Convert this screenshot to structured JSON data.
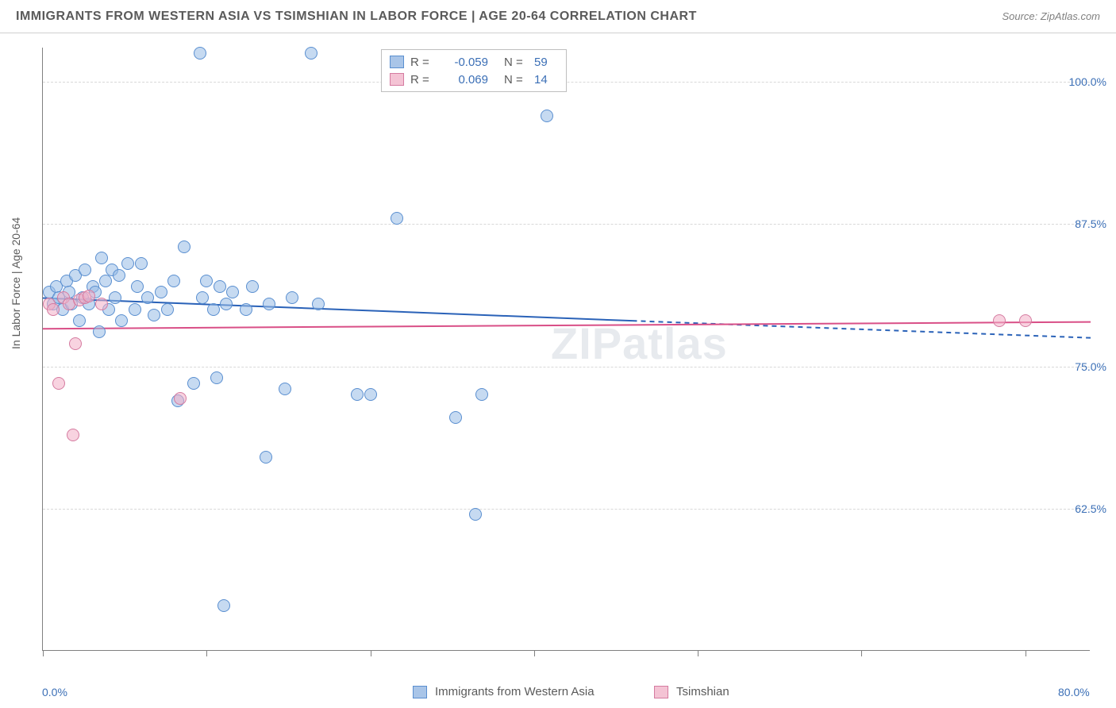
{
  "header": {
    "title": "IMMIGRANTS FROM WESTERN ASIA VS TSIMSHIAN IN LABOR FORCE | AGE 20-64 CORRELATION CHART",
    "source": "Source: ZipAtlas.com"
  },
  "watermark": "ZIPatlas",
  "chart": {
    "type": "scatter",
    "background_color": "#ffffff",
    "grid_color": "#d8d8d8",
    "axis_color": "#808080",
    "ylabel": "In Labor Force | Age 20-64",
    "ylabel_fontsize": 14,
    "ylabel_color": "#5a5a5a",
    "ylim": [
      50.0,
      103.0
    ],
    "ytick_values": [
      62.5,
      75.0,
      87.5,
      100.0
    ],
    "ytick_labels": [
      "62.5%",
      "75.0%",
      "87.5%",
      "100.0%"
    ],
    "ytick_color": "#3b6fb6",
    "xlim": [
      0.0,
      80.0
    ],
    "xtick_values": [
      0.0,
      80.0
    ],
    "xtick_labels": [
      "0.0%",
      "80.0%"
    ],
    "xtick_minor": [
      0,
      12.5,
      25,
      37.5,
      50,
      62.5,
      75
    ],
    "marker_radius": 8,
    "marker_border_width": 1.5,
    "series": [
      {
        "name": "Immigrants from Western Asia",
        "fill_color": "rgba(151,187,229,0.55)",
        "stroke_color": "#5a8fd0",
        "swatch_fill": "#a9c5e8",
        "swatch_border": "#5a8fd0",
        "R": "-0.059",
        "N": "59",
        "trend": {
          "solid": {
            "x1": 0,
            "y1": 81.0,
            "x2": 45,
            "y2": 79.0
          },
          "dashed": {
            "x1": 45,
            "y1": 79.0,
            "x2": 80,
            "y2": 77.5
          },
          "color": "#2a62b8",
          "width": 2
        },
        "points": [
          {
            "x": 0.5,
            "y": 81.5
          },
          {
            "x": 0.8,
            "y": 80.5
          },
          {
            "x": 1.0,
            "y": 82.0
          },
          {
            "x": 1.2,
            "y": 81.0
          },
          {
            "x": 1.5,
            "y": 80.0
          },
          {
            "x": 1.8,
            "y": 82.5
          },
          {
            "x": 2.0,
            "y": 81.5
          },
          {
            "x": 2.2,
            "y": 80.5
          },
          {
            "x": 2.5,
            "y": 83.0
          },
          {
            "x": 2.8,
            "y": 79.0
          },
          {
            "x": 3.0,
            "y": 81.0
          },
          {
            "x": 3.2,
            "y": 83.5
          },
          {
            "x": 3.5,
            "y": 80.5
          },
          {
            "x": 3.8,
            "y": 82.0
          },
          {
            "x": 4.0,
            "y": 81.5
          },
          {
            "x": 4.3,
            "y": 78.0
          },
          {
            "x": 4.5,
            "y": 84.5
          },
          {
            "x": 4.8,
            "y": 82.5
          },
          {
            "x": 5.0,
            "y": 80.0
          },
          {
            "x": 5.3,
            "y": 83.5
          },
          {
            "x": 5.5,
            "y": 81.0
          },
          {
            "x": 5.8,
            "y": 83.0
          },
          {
            "x": 6.0,
            "y": 79.0
          },
          {
            "x": 6.5,
            "y": 84.0
          },
          {
            "x": 7.0,
            "y": 80.0
          },
          {
            "x": 7.2,
            "y": 82.0
          },
          {
            "x": 7.5,
            "y": 84.0
          },
          {
            "x": 8.0,
            "y": 81.0
          },
          {
            "x": 8.5,
            "y": 79.5
          },
          {
            "x": 9.0,
            "y": 81.5
          },
          {
            "x": 9.5,
            "y": 80.0
          },
          {
            "x": 10.0,
            "y": 82.5
          },
          {
            "x": 10.3,
            "y": 72.0
          },
          {
            "x": 10.8,
            "y": 85.5
          },
          {
            "x": 11.5,
            "y": 73.5
          },
          {
            "x": 12.0,
            "y": 102.5
          },
          {
            "x": 12.2,
            "y": 81.0
          },
          {
            "x": 12.5,
            "y": 82.5
          },
          {
            "x": 13.0,
            "y": 80.0
          },
          {
            "x": 13.3,
            "y": 74.0
          },
          {
            "x": 13.5,
            "y": 82.0
          },
          {
            "x": 13.8,
            "y": 54.0
          },
          {
            "x": 14.0,
            "y": 80.5
          },
          {
            "x": 14.5,
            "y": 81.5
          },
          {
            "x": 15.5,
            "y": 80.0
          },
          {
            "x": 16.0,
            "y": 82.0
          },
          {
            "x": 17.0,
            "y": 67.0
          },
          {
            "x": 17.3,
            "y": 80.5
          },
          {
            "x": 18.5,
            "y": 73.0
          },
          {
            "x": 19.0,
            "y": 81.0
          },
          {
            "x": 20.5,
            "y": 102.5
          },
          {
            "x": 21.0,
            "y": 80.5
          },
          {
            "x": 24.0,
            "y": 72.5
          },
          {
            "x": 25.0,
            "y": 72.5
          },
          {
            "x": 27.0,
            "y": 88.0
          },
          {
            "x": 31.5,
            "y": 70.5
          },
          {
            "x": 33.0,
            "y": 62.0
          },
          {
            "x": 33.5,
            "y": 72.5
          },
          {
            "x": 38.5,
            "y": 97.0
          }
        ]
      },
      {
        "name": "Tsimshian",
        "fill_color": "rgba(242,175,198,0.55)",
        "stroke_color": "#d57ba0",
        "swatch_fill": "#f4c3d4",
        "swatch_border": "#d57ba0",
        "R": "0.069",
        "N": "14",
        "trend": {
          "solid": {
            "x1": 0,
            "y1": 78.3,
            "x2": 80,
            "y2": 78.9
          },
          "color": "#d94f87",
          "width": 2
        },
        "points": [
          {
            "x": 0.5,
            "y": 80.5
          },
          {
            "x": 0.8,
            "y": 80.0
          },
          {
            "x": 1.2,
            "y": 73.5
          },
          {
            "x": 1.6,
            "y": 81.0
          },
          {
            "x": 2.0,
            "y": 80.5
          },
          {
            "x": 2.3,
            "y": 69.0
          },
          {
            "x": 2.5,
            "y": 77.0
          },
          {
            "x": 2.8,
            "y": 80.8
          },
          {
            "x": 3.2,
            "y": 81.0
          },
          {
            "x": 3.5,
            "y": 81.2
          },
          {
            "x": 4.5,
            "y": 80.5
          },
          {
            "x": 10.5,
            "y": 72.2
          },
          {
            "x": 73.0,
            "y": 79.0
          },
          {
            "x": 75.0,
            "y": 79.0
          }
        ]
      }
    ]
  },
  "legend_top": {
    "rows": [
      {
        "series_idx": 0,
        "r_label": "R =",
        "r_val": "-0.059",
        "n_label": "N =",
        "n_val": "59"
      },
      {
        "series_idx": 1,
        "r_label": "R =",
        "r_val": "0.069",
        "n_label": "N =",
        "n_val": "14"
      }
    ]
  },
  "legend_bottom": [
    {
      "series_idx": 0,
      "label": "Immigrants from Western Asia"
    },
    {
      "series_idx": 1,
      "label": "Tsimshian"
    }
  ]
}
